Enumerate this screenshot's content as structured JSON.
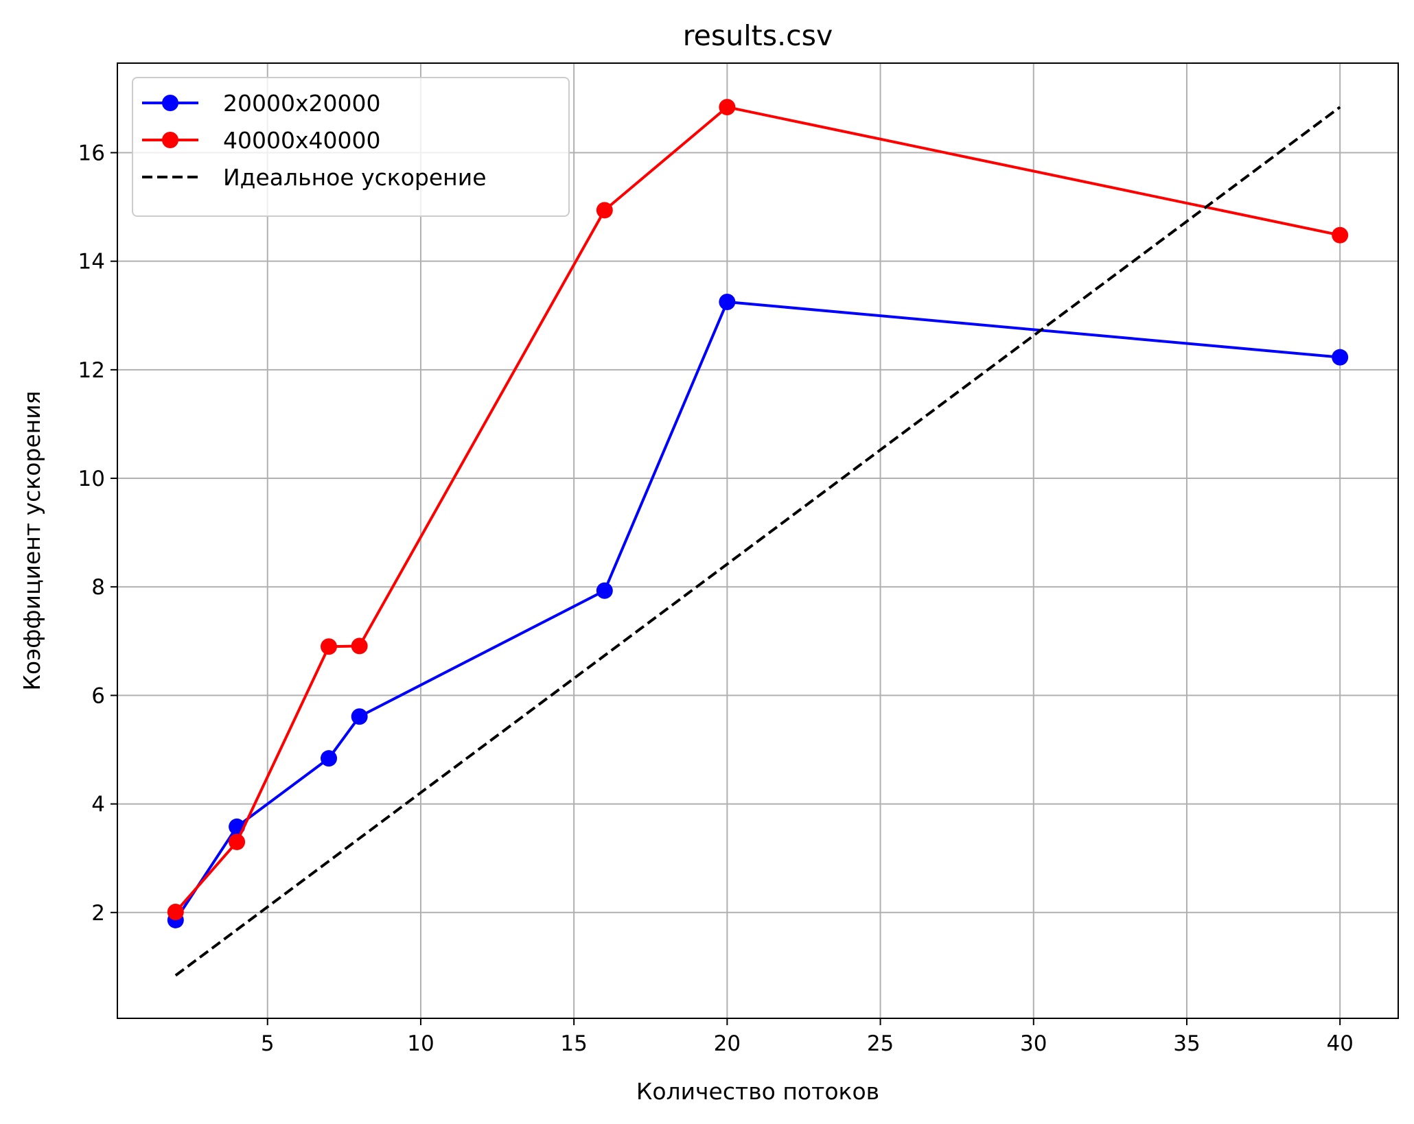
{
  "chart_data": {
    "type": "line",
    "title": "results.csv",
    "xlabel": "Количество потоков",
    "ylabel": "Коэффициент ускорения",
    "xlim": [
      0.1,
      41.9
    ],
    "ylim": [
      0.05,
      17.65
    ],
    "xticks": [
      5,
      10,
      15,
      20,
      25,
      30,
      35,
      40
    ],
    "yticks": [
      2,
      4,
      6,
      8,
      10,
      12,
      14,
      16
    ],
    "grid": true,
    "legend_position": "top-left",
    "series": [
      {
        "name": "20000x20000",
        "color": "#0000ff",
        "style": "solid",
        "marker": "circle",
        "x": [
          2,
          4,
          7,
          8,
          16,
          20,
          40
        ],
        "y": [
          1.86,
          3.58,
          4.84,
          5.61,
          7.93,
          13.25,
          12.23
        ]
      },
      {
        "name": "40000x40000",
        "color": "#ff0000",
        "style": "solid",
        "marker": "circle",
        "x": [
          2,
          4,
          7,
          8,
          16,
          20,
          40
        ],
        "y": [
          2.01,
          3.3,
          6.9,
          6.91,
          14.94,
          16.84,
          14.48
        ]
      },
      {
        "name": "Идеальное ускорение",
        "color": "#000000",
        "style": "dashed",
        "marker": "none",
        "x": [
          2,
          40
        ],
        "y": [
          0.84,
          16.84
        ]
      }
    ]
  }
}
